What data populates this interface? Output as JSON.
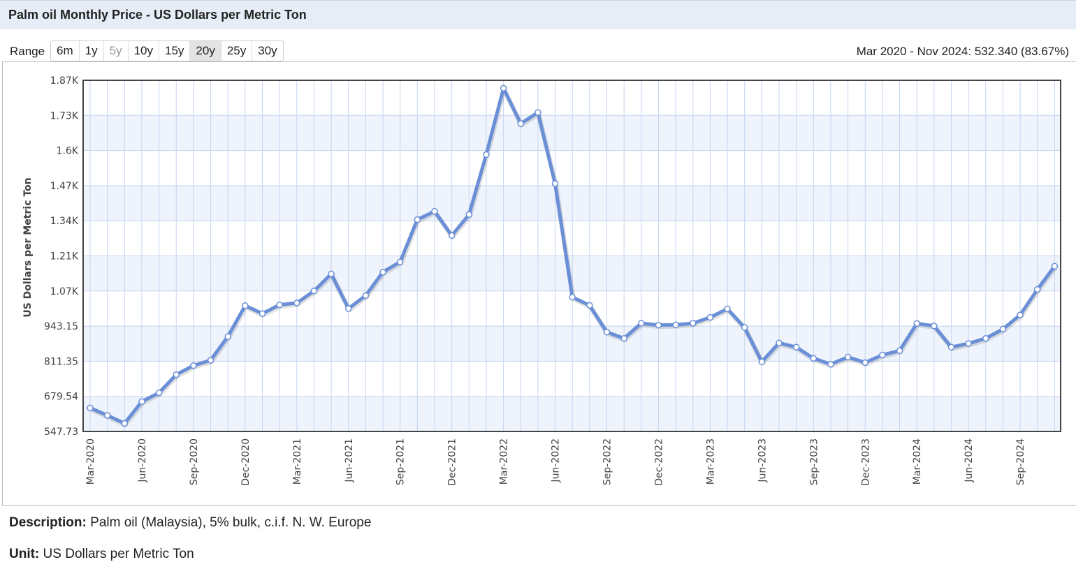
{
  "header": {
    "title": "Palm oil Monthly Price - US Dollars per Metric Ton"
  },
  "range": {
    "label": "Range",
    "buttons": [
      {
        "label": "6m",
        "state": "normal"
      },
      {
        "label": "1y",
        "state": "normal"
      },
      {
        "label": "5y",
        "state": "disabled"
      },
      {
        "label": "10y",
        "state": "normal"
      },
      {
        "label": "15y",
        "state": "normal"
      },
      {
        "label": "20y",
        "state": "active"
      },
      {
        "label": "25y",
        "state": "normal"
      },
      {
        "label": "30y",
        "state": "normal"
      }
    ],
    "summary": "Mar 2020 - Nov 2024: 532.340 (83.67%)"
  },
  "footer": {
    "description_label": "Description:",
    "description_value": "Palm oil (Malaysia), 5% bulk, c.i.f. N. W. Europe",
    "unit_label": "Unit:",
    "unit_value": "US Dollars per Metric Ton"
  },
  "chart_data": {
    "type": "line",
    "ylabel": "US Dollars per Metric Ton",
    "ylim": [
      547.73,
      1865.82
    ],
    "yticks": [
      547.73,
      679.54,
      811.35,
      943.15,
      1074.96,
      1206.77,
      1338.58,
      1470.39,
      1602.2,
      1734.01,
      1865.82
    ],
    "ytick_labels": [
      "547.73",
      "679.54",
      "811.35",
      "943.15",
      "1.07K",
      "1.21K",
      "1.34K",
      "1.47K",
      "1.6K",
      "1.73K",
      "1.87K"
    ],
    "xtick_labels": [
      "Mar-2020",
      "Jun-2020",
      "Sep-2020",
      "Dec-2020",
      "Mar-2021",
      "Jun-2021",
      "Sep-2021",
      "Dec-2021",
      "Mar-2022",
      "Jun-2022",
      "Sep-2022",
      "Dec-2022",
      "Mar-2023",
      "Jun-2023",
      "Sep-2023",
      "Dec-2023",
      "Mar-2024",
      "Jun-2024",
      "Sep-2024"
    ],
    "line_color": "#6a8fd6",
    "grid": true,
    "series": [
      {
        "x": [
          "Mar-2020",
          "Apr-2020",
          "May-2020",
          "Jun-2020",
          "Jul-2020",
          "Aug-2020",
          "Sep-2020",
          "Oct-2020",
          "Nov-2020",
          "Dec-2020",
          "Jan-2021",
          "Feb-2021",
          "Mar-2021",
          "Apr-2021",
          "May-2021",
          "Jun-2021",
          "Jul-2021",
          "Aug-2021",
          "Sep-2021",
          "Oct-2021",
          "Nov-2021",
          "Dec-2021",
          "Jan-2022",
          "Feb-2022",
          "Mar-2022",
          "Apr-2022",
          "May-2022",
          "Jun-2022",
          "Jul-2022",
          "Aug-2022",
          "Sep-2022",
          "Oct-2022",
          "Nov-2022",
          "Dec-2022",
          "Jan-2023",
          "Feb-2023",
          "Mar-2023",
          "Apr-2023",
          "May-2023",
          "Jun-2023",
          "Jul-2023",
          "Aug-2023",
          "Sep-2023",
          "Oct-2023",
          "Nov-2023",
          "Dec-2023",
          "Jan-2024",
          "Feb-2024",
          "Mar-2024",
          "Apr-2024",
          "May-2024",
          "Jun-2024",
          "Jul-2024",
          "Aug-2024",
          "Sep-2024",
          "Oct-2024",
          "Nov-2024"
        ],
        "values": [
          636,
          608,
          578,
          660,
          693,
          761,
          795,
          815,
          904,
          1020,
          990,
          1023,
          1030,
          1075,
          1139,
          1009,
          1058,
          1146,
          1184,
          1343,
          1374,
          1283,
          1362,
          1587,
          1836,
          1703,
          1745,
          1478,
          1052,
          1021,
          921,
          897,
          954,
          947,
          948,
          954,
          976,
          1008,
          938,
          809,
          880,
          864,
          822,
          800,
          827,
          806,
          835,
          851,
          953,
          944,
          864,
          878,
          897,
          932,
          985,
          1081,
          1168
        ]
      }
    ]
  }
}
